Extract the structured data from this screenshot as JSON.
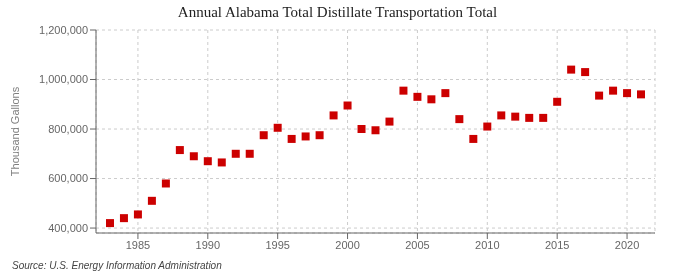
{
  "chart_data": {
    "type": "scatter",
    "title": "Annual Alabama Total Distillate Transportation Total",
    "ylabel": "Thousand Gallons",
    "annotations": [
      "Source: U.S. Energy Information Administration"
    ],
    "x": [
      1983,
      1984,
      1985,
      1986,
      1987,
      1988,
      1989,
      1990,
      1991,
      1992,
      1993,
      1994,
      1995,
      1996,
      1997,
      1998,
      1999,
      2000,
      2001,
      2002,
      2003,
      2004,
      2005,
      2006,
      2007,
      2008,
      2009,
      2010,
      2011,
      2012,
      2013,
      2014,
      2015,
      2016,
      2017,
      2018,
      2019,
      2020,
      2021
    ],
    "values": [
      420000,
      440000,
      455000,
      510000,
      580000,
      715000,
      690000,
      670000,
      665000,
      700000,
      700000,
      775000,
      805000,
      760000,
      770000,
      775000,
      855000,
      895000,
      800000,
      795000,
      830000,
      955000,
      930000,
      920000,
      945000,
      840000,
      760000,
      810000,
      855000,
      850000,
      845000,
      845000,
      910000,
      1040000,
      1030000,
      935000,
      955000,
      945000,
      940000
    ],
    "color": "#cc0000",
    "marker": "square",
    "grid": true,
    "xlim": [
      1982,
      2022
    ],
    "xticks": [
      1985,
      1990,
      1995,
      2000,
      2005,
      2010,
      2015,
      2020
    ],
    "ylim": [
      380000,
      1200000
    ],
    "yticks": [
      {
        "value": 400000,
        "label": "400,000"
      },
      {
        "value": 600000,
        "label": "600,000"
      },
      {
        "value": 800000,
        "label": "800,000"
      },
      {
        "value": 1000000,
        "label": "1,000,000"
      },
      {
        "value": 1200000,
        "label": "1,200,000"
      }
    ]
  }
}
